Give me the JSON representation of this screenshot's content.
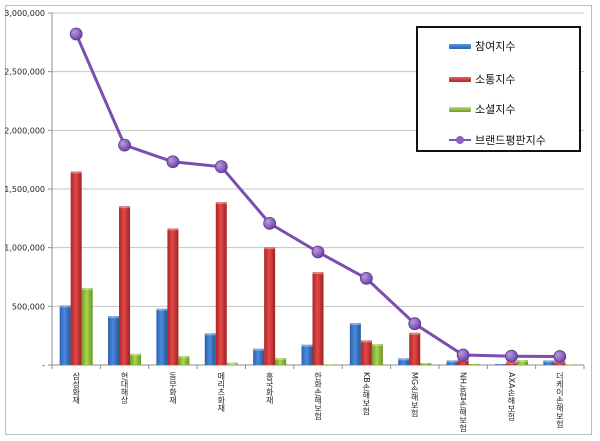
{
  "chart_data": {
    "type": "bar+line",
    "title": "",
    "xlabel": "",
    "ylabel": "",
    "ylim": [
      0,
      3000000
    ],
    "grid": true,
    "legend_position": "top-right (inside)",
    "y_ticks": [
      "-",
      "500,000",
      "1,000,000",
      "1,500,000",
      "2,000,000",
      "2,500,000",
      "3,000,000"
    ],
    "categories": [
      "삼성화재",
      "현대해상",
      "동부화재",
      "메리츠화재",
      "흥국화재",
      "한화손해보험",
      "KB손해보험",
      "MG손해보험",
      "NH농협손해보험",
      "AXA손해보험",
      "더케이손해보험"
    ],
    "series": [
      {
        "name": "참여지수",
        "type": "bar",
        "color": "#3a78cf",
        "values": [
          508000,
          417000,
          480000,
          270000,
          139000,
          173000,
          358000,
          57000,
          39000,
          8000,
          39000
        ]
      },
      {
        "name": "소통지수",
        "type": "bar",
        "color": "#d63a3a",
        "values": [
          1650000,
          1354000,
          1164000,
          1389000,
          1005000,
          792000,
          210000,
          275000,
          51000,
          28000,
          31000
        ]
      },
      {
        "name": "소셜지수",
        "type": "bar",
        "color": "#94c63f",
        "values": [
          656000,
          96000,
          77000,
          20000,
          60000,
          5000,
          179000,
          15000,
          8000,
          43000,
          5000
        ]
      },
      {
        "name": "브랜드평판지수",
        "type": "line",
        "color": "#7a4fae",
        "values": [
          2821000,
          1874000,
          1732000,
          1690000,
          1207000,
          963000,
          738000,
          352000,
          85000,
          75000,
          72000
        ]
      }
    ]
  },
  "legend": {
    "items": [
      {
        "label": "참여지수",
        "kind": "bar",
        "color": "#3a78cf"
      },
      {
        "label": "소통지수",
        "kind": "bar",
        "color": "#d63a3a"
      },
      {
        "label": "소셜지수",
        "kind": "bar",
        "color": "#94c63f"
      },
      {
        "label": "브랜드평판지수",
        "kind": "line",
        "color": "#7a4fae"
      }
    ]
  }
}
